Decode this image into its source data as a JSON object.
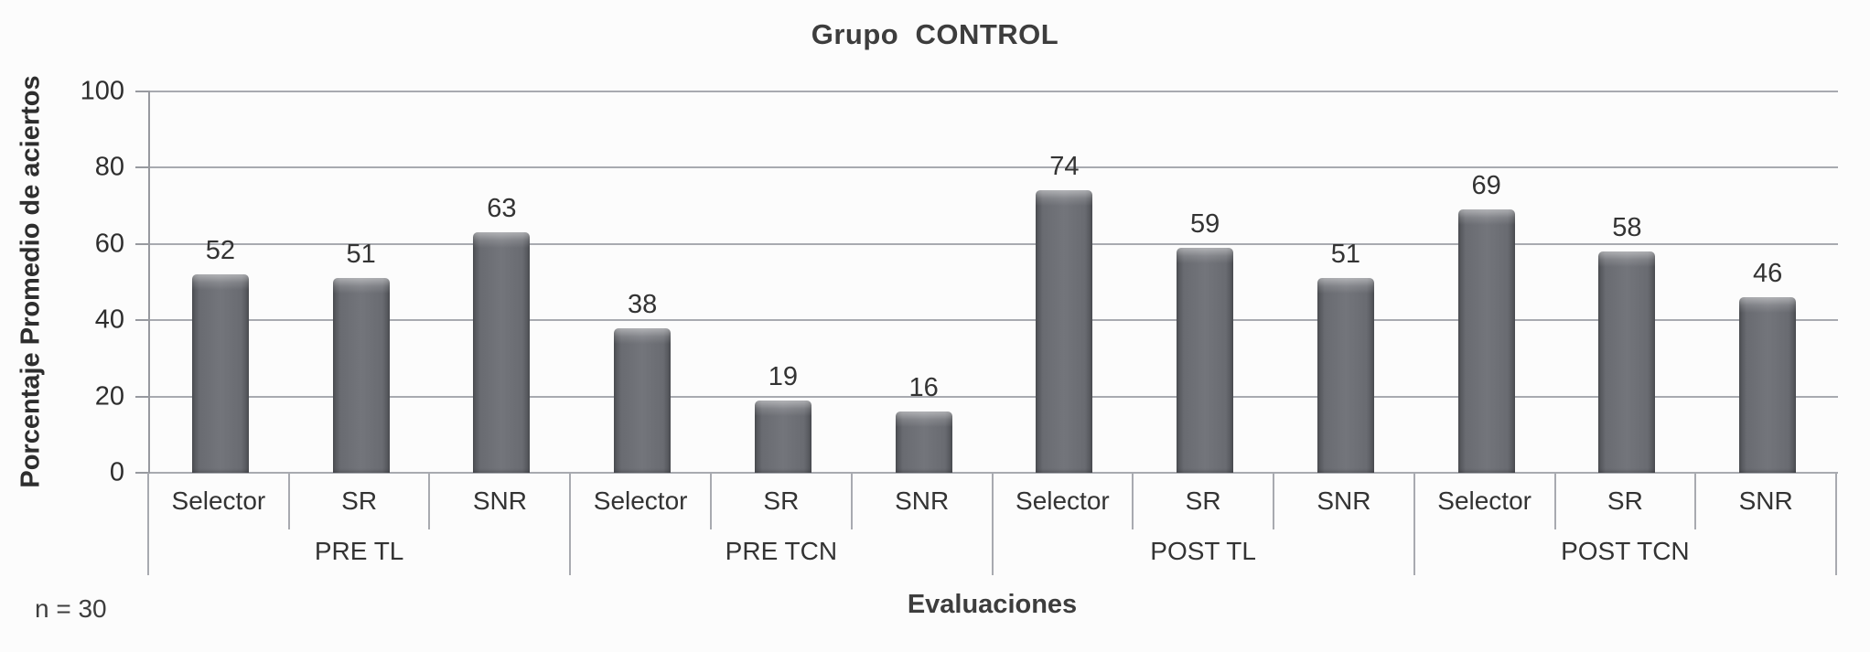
{
  "chart_data": {
    "type": "bar",
    "title": "Grupo  CONTROL",
    "xlabel": "Evaluaciones",
    "ylabel": "Porcentaje Promedio de aciertos",
    "note": "n = 30",
    "ylim": [
      0,
      100
    ],
    "yticks": [
      100,
      80,
      60,
      40,
      20,
      0
    ],
    "grid": true,
    "legend": false,
    "subcategories": [
      "Selector",
      "SR",
      "SNR"
    ],
    "groups": [
      {
        "label": "PRE TL",
        "values": [
          52,
          51,
          63
        ]
      },
      {
        "label": "PRE TCN",
        "values": [
          38,
          19,
          16
        ]
      },
      {
        "label": "POST TL",
        "values": [
          74,
          59,
          51
        ]
      },
      {
        "label": "POST TCN",
        "values": [
          69,
          58,
          46
        ]
      }
    ],
    "colors": {
      "background": "#fcfcfc",
      "bar": "#63656b",
      "bar_edge": "#4e5055",
      "grid": "#a8aab0",
      "text": "#333333"
    }
  }
}
